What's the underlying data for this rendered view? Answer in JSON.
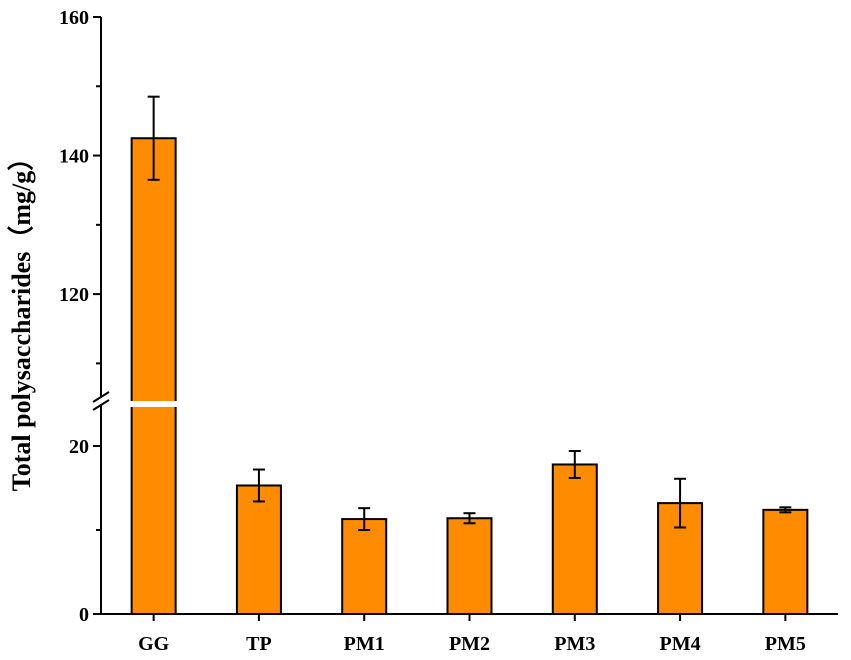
{
  "chart_data": {
    "type": "bar",
    "title": "",
    "xlabel": "",
    "ylabel": "Total polysaccharides（mg/g）",
    "categories": [
      "GG",
      "TP",
      "PM1",
      "PM2",
      "PM3",
      "PM4",
      "PM5"
    ],
    "series": [
      {
        "values": [
          142.5,
          15.3,
          11.3,
          11.4,
          17.8,
          13.2,
          12.4
        ],
        "errors": [
          6.0,
          1.9,
          1.3,
          0.6,
          1.6,
          2.9,
          0.3
        ]
      }
    ],
    "y_axis_break": {
      "lower_segment": [
        0,
        25
      ],
      "upper_segment": [
        105,
        160
      ]
    },
    "yticks_lower": [
      "0",
      "20"
    ],
    "yticks_upper": [
      "120",
      "140",
      "160"
    ],
    "grid": false,
    "legend": "none",
    "colors": {
      "bar_fill": "#ff8c00",
      "bar_stroke": "#000000",
      "error_bar": "#000000"
    }
  }
}
